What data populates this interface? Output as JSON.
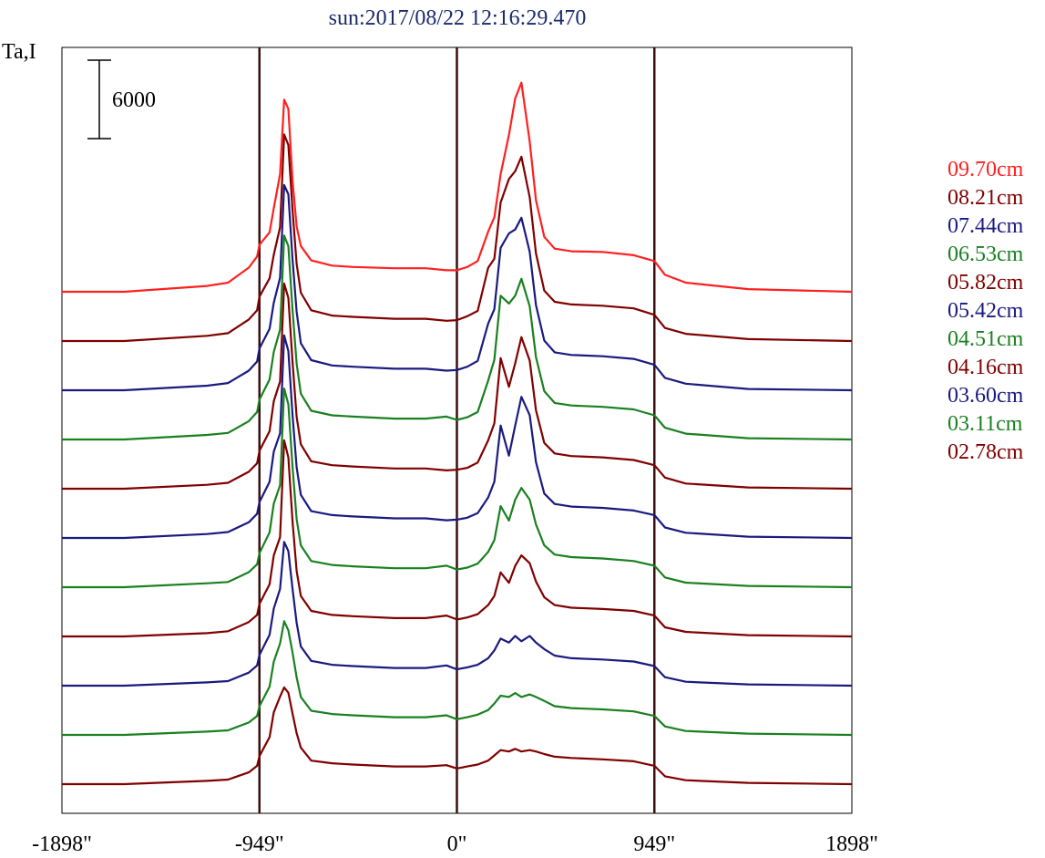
{
  "chart_data": {
    "type": "line",
    "title": "sun:2017/08/22 12:16:29.470",
    "ylabel": "Ta,I",
    "xlabel": "",
    "xlim": [
      -1898,
      1898
    ],
    "xticks": [
      "-1898\"",
      "-949\"",
      "0\"",
      "949\"",
      "1898\""
    ],
    "xtick_values": [
      -1898,
      -949,
      0,
      949,
      1898
    ],
    "vlines": [
      -949,
      0,
      949
    ],
    "scale_bar": {
      "label": "6000",
      "value": 6000
    },
    "x": [
      -1898,
      -1600,
      -1200,
      -1100,
      -1000,
      -960,
      -949,
      -900,
      -880,
      -850,
      -830,
      -810,
      -790,
      -770,
      -750,
      -700,
      -600,
      -500,
      -300,
      -150,
      -50,
      0,
      50,
      100,
      150,
      180,
      210,
      250,
      280,
      310,
      350,
      380,
      420,
      470,
      550,
      700,
      850,
      949,
      1000,
      1100,
      1400,
      1898
    ],
    "series": [
      {
        "name": "09.70cm",
        "color": "#ff2020",
        "values": [
          0,
          0,
          450,
          700,
          1850,
          2700,
          3600,
          4550,
          6400,
          9000,
          14700,
          14000,
          8500,
          5000,
          3500,
          2400,
          2000,
          1900,
          1800,
          1800,
          1650,
          1650,
          1900,
          2350,
          4600,
          5700,
          9000,
          12000,
          14800,
          16000,
          11500,
          7000,
          4200,
          3300,
          3100,
          3050,
          2800,
          2350,
          1300,
          700,
          200,
          0
        ]
      },
      {
        "name": "08.21cm",
        "color": "#800000",
        "values": [
          0,
          0,
          400,
          600,
          1650,
          2350,
          3400,
          4800,
          6600,
          8700,
          15800,
          15000,
          10000,
          5900,
          3700,
          2350,
          1950,
          1850,
          1700,
          1700,
          1550,
          1600,
          1900,
          2300,
          5600,
          6300,
          10600,
          12400,
          13000,
          14100,
          11000,
          6700,
          3850,
          3000,
          2800,
          2700,
          2500,
          2000,
          1000,
          550,
          150,
          0
        ]
      },
      {
        "name": "07.44cm",
        "color": "#1a1a80",
        "values": [
          0,
          0,
          350,
          550,
          1500,
          2200,
          3200,
          4700,
          6700,
          8600,
          15700,
          15000,
          10000,
          6000,
          3600,
          2300,
          1900,
          1800,
          1650,
          1650,
          1500,
          1550,
          1800,
          2250,
          5100,
          6200,
          10900,
          12000,
          12300,
          13200,
          10600,
          6500,
          3800,
          2900,
          2700,
          2600,
          2400,
          1950,
          950,
          500,
          100,
          0
        ]
      },
      {
        "name": "06.53cm",
        "color": "#1a8020",
        "values": [
          0,
          0,
          350,
          500,
          1400,
          2100,
          3050,
          4600,
          6700,
          8400,
          15600,
          14800,
          9900,
          5800,
          3500,
          2200,
          1850,
          1750,
          1600,
          1600,
          1750,
          1500,
          1700,
          2100,
          4500,
          6100,
          11000,
          10400,
          11000,
          12300,
          10200,
          6300,
          3700,
          2800,
          2600,
          2500,
          2300,
          1850,
          900,
          450,
          100,
          0
        ]
      },
      {
        "name": "05.82cm",
        "color": "#800000",
        "values": [
          0,
          0,
          300,
          450,
          1300,
          1950,
          2900,
          4400,
          6700,
          8200,
          15700,
          14600,
          9700,
          5500,
          3400,
          2100,
          1800,
          1700,
          1550,
          1550,
          1400,
          1450,
          1600,
          2000,
          3700,
          5000,
          10000,
          7800,
          9600,
          11600,
          9800,
          6000,
          3500,
          2700,
          2500,
          2400,
          2200,
          1800,
          850,
          400,
          100,
          0
        ]
      },
      {
        "name": "05.42cm",
        "color": "#1a1a80",
        "values": [
          0,
          0,
          300,
          450,
          1200,
          1850,
          2750,
          4300,
          6600,
          8000,
          15500,
          14300,
          9400,
          5400,
          3300,
          2050,
          1750,
          1650,
          1500,
          1500,
          1350,
          1400,
          1550,
          1900,
          3100,
          4300,
          8600,
          6300,
          8600,
          10800,
          9400,
          5800,
          3400,
          2600,
          2400,
          2300,
          2100,
          1750,
          800,
          400,
          100,
          0
        ]
      },
      {
        "name": "04.51cm",
        "color": "#1a8020",
        "values": [
          0,
          0,
          300,
          400,
          1150,
          1750,
          2600,
          4200,
          6400,
          7800,
          15200,
          14000,
          9200,
          5200,
          3200,
          2000,
          1700,
          1600,
          1450,
          1450,
          1650,
          1350,
          1500,
          1800,
          2700,
          3600,
          6200,
          5100,
          6700,
          7600,
          6700,
          4800,
          3200,
          2500,
          2300,
          2200,
          2000,
          1650,
          750,
          350,
          100,
          0
        ]
      },
      {
        "name": "04.16cm",
        "color": "#800000",
        "values": [
          0,
          0,
          250,
          400,
          1100,
          1650,
          2500,
          4000,
          6200,
          7600,
          15000,
          13700,
          8800,
          5000,
          3100,
          1950,
          1650,
          1550,
          1400,
          1400,
          1600,
          1300,
          1450,
          1700,
          2400,
          3100,
          4900,
          4100,
          5400,
          6200,
          5600,
          4200,
          3000,
          2400,
          2200,
          2100,
          1950,
          1600,
          700,
          350,
          100,
          0
        ]
      },
      {
        "name": "03.60cm",
        "color": "#1a1a80",
        "values": [
          0,
          0,
          250,
          350,
          1000,
          1550,
          2350,
          3900,
          5900,
          7400,
          11000,
          10300,
          7400,
          4800,
          3000,
          1900,
          1600,
          1500,
          1350,
          1350,
          1550,
          1250,
          1400,
          1600,
          2100,
          2700,
          3600,
          3300,
          3800,
          3400,
          3800,
          3300,
          2800,
          2300,
          2100,
          2000,
          1850,
          1500,
          650,
          300,
          100,
          0
        ]
      },
      {
        "name": "03.11cm",
        "color": "#1a8020",
        "values": [
          0,
          0,
          250,
          350,
          950,
          1450,
          2200,
          3700,
          5600,
          7000,
          8700,
          8000,
          6300,
          4400,
          2900,
          1850,
          1600,
          1500,
          1350,
          1350,
          1500,
          1200,
          1350,
          1550,
          1900,
          2400,
          3000,
          2900,
          3200,
          2900,
          3100,
          2900,
          2600,
          2200,
          2050,
          1950,
          1800,
          1450,
          650,
          300,
          100,
          0
        ]
      },
      {
        "name": "02.78cm",
        "color": "#800000",
        "values": [
          0,
          0,
          250,
          350,
          900,
          1400,
          2150,
          3600,
          5500,
          6700,
          7400,
          7000,
          5400,
          3900,
          2800,
          1800,
          1600,
          1500,
          1350,
          1350,
          1450,
          1200,
          1350,
          1500,
          1800,
          2200,
          2600,
          2500,
          2700,
          2500,
          2600,
          2500,
          2300,
          2100,
          2000,
          1900,
          1750,
          1400,
          600,
          300,
          100,
          0
        ]
      }
    ]
  }
}
